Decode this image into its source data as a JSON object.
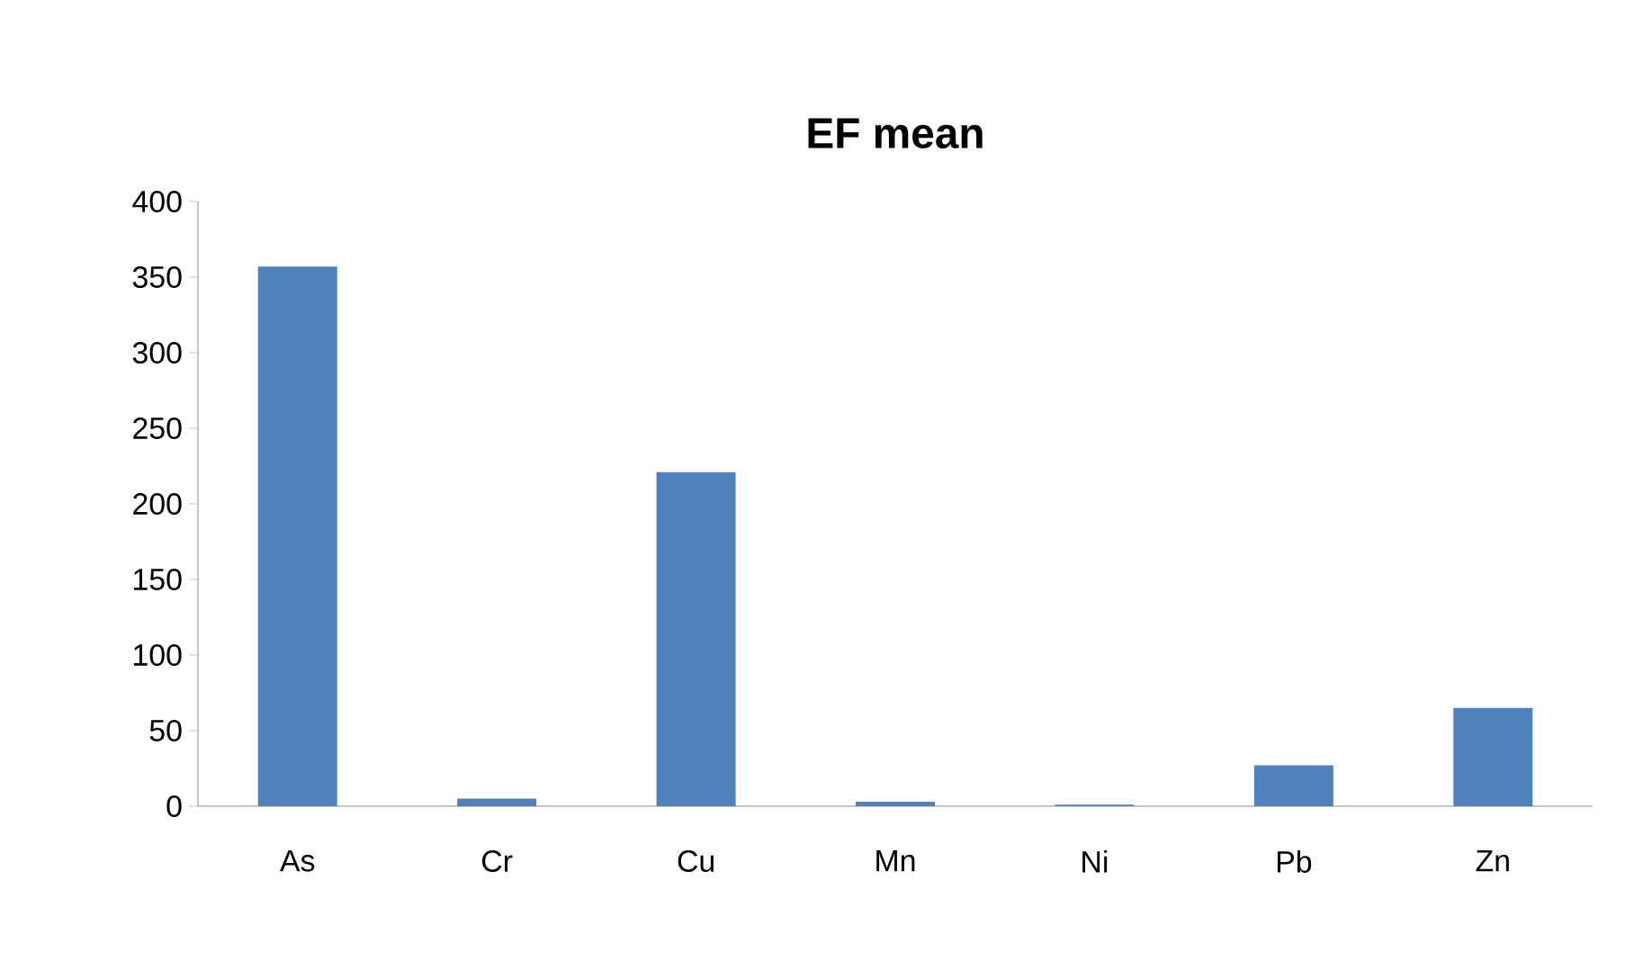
{
  "chart_data": {
    "type": "bar",
    "title": "EF mean",
    "categories": [
      "As",
      "Cr",
      "Cu",
      "Mn",
      "Ni",
      "Pb",
      "Zn"
    ],
    "values": [
      357,
      5,
      221,
      3,
      1,
      27,
      65
    ],
    "color": "#4f81bd",
    "ylim": [
      0,
      400
    ],
    "yticks": [
      0,
      50,
      100,
      150,
      200,
      250,
      300,
      350,
      400
    ],
    "grid": false
  }
}
